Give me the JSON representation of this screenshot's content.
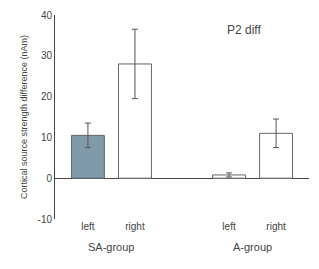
{
  "chart_data": {
    "type": "bar",
    "categories": [
      "left",
      "right",
      "left",
      "right"
    ],
    "groups": [
      "SA-group",
      "SA-group",
      "A-group",
      "A-group"
    ],
    "values": [
      10.5,
      28.0,
      0.8,
      11.0
    ],
    "errors": [
      3.0,
      8.5,
      0.5,
      3.5
    ],
    "colors": [
      "#7f9aaa",
      "#ffffff",
      "#ffffff",
      "#ffffff"
    ],
    "ylabel": "Cortical source strength difference (nAm)",
    "annotation": "P2 diff",
    "ylim": [
      -10,
      40
    ],
    "yticks": [
      -10,
      0,
      10,
      20,
      30,
      40
    ],
    "grid": false
  }
}
